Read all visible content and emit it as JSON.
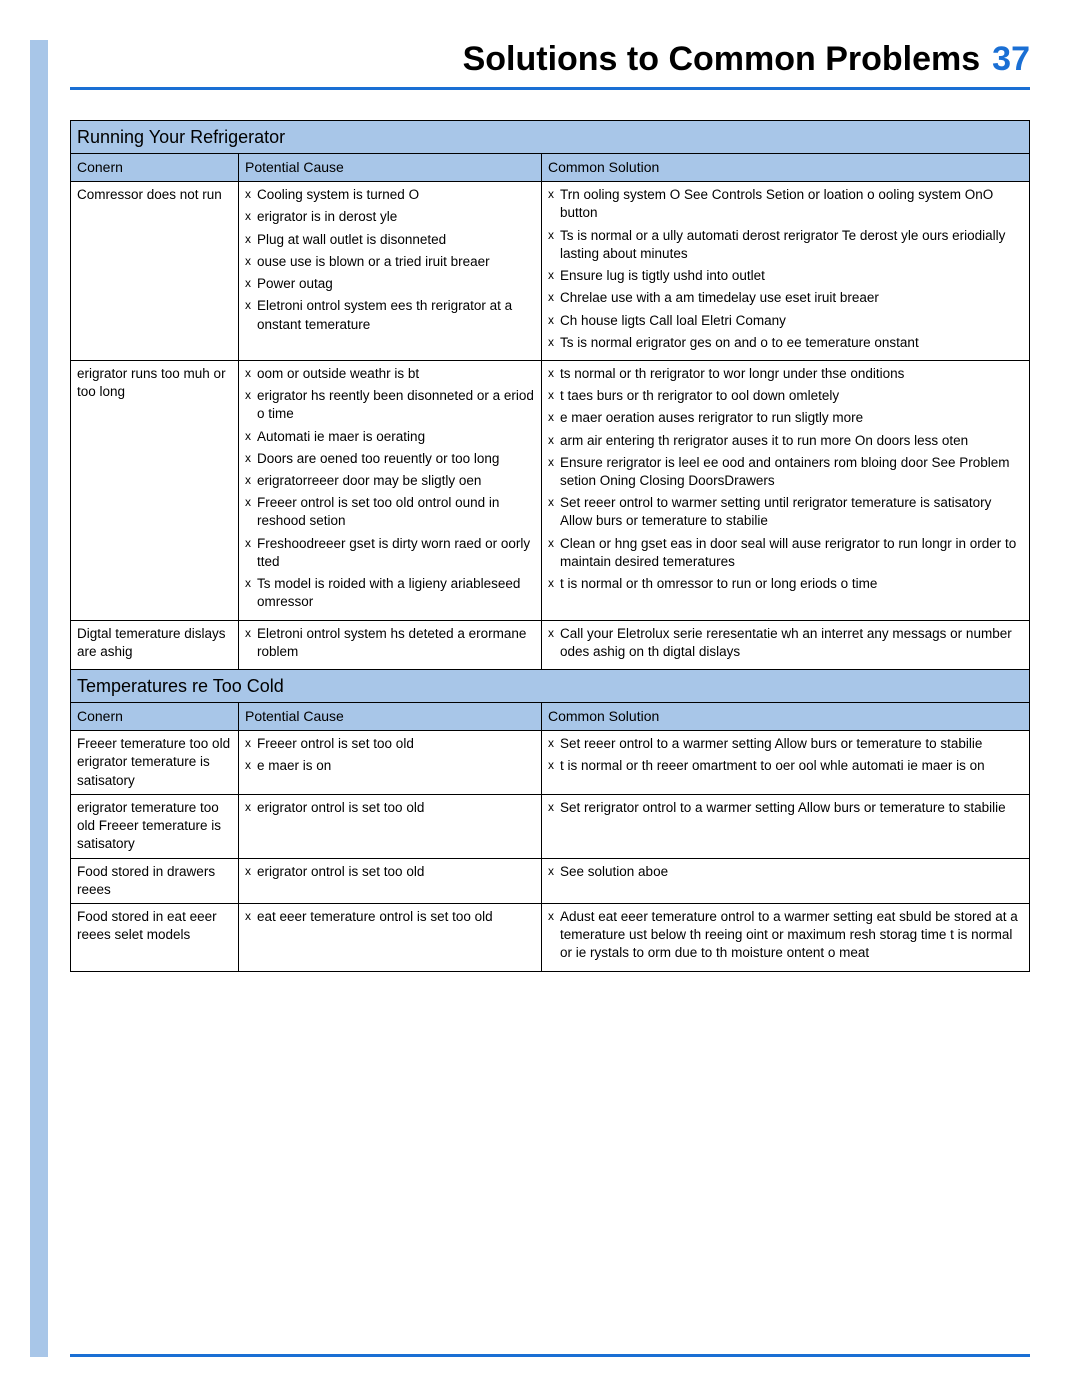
{
  "header": {
    "title": "Solutions to Common Problems",
    "page_number": "37"
  },
  "colors": {
    "accent": "#1a6fd4",
    "band": "#a8c6e8",
    "text": "#000000",
    "bg": "#ffffff"
  },
  "tables": [
    {
      "section_title": "Running Your Refrigerator",
      "columns": [
        "Conern",
        "Potential Cause",
        "Common Solution"
      ],
      "rows": [
        {
          "concern": "Comressor does not run",
          "causes": [
            "Cooling system is turned O",
            "erigrator is in derost yle",
            "Plug at wall outlet is disonneted",
            "ouse use is blown or a tried iruit breaer",
            "Power outag",
            "Eletroni ontrol system ees th rerigrator at a onstant temerature"
          ],
          "solutions": [
            "Trn ooling system O See Controls Setion or loation o ooling system  OnO  button",
            "Ts is normal or a ully automati derost rerigrator Te derost yle ours eriodially lasting about  minutes",
            "Ensure lug is tigtly ushd into outlet",
            "Chrelae use with a  am timedelay use  eset iruit breaer",
            "Ch house ligts Call loal Eletri Comany",
            "Ts is normal erigrator ges on and o to ee temerature onstant"
          ]
        },
        {
          "concern": "erigrator runs too muh or too long",
          "causes": [
            "oom or outside weathr is bt",
            "erigrator hs reently been disonneted or a eriod o time",
            "Automati ie maer is oerating",
            "Doors are oened too reuently or too long",
            "erigratorreeer door may be sligtly oen",
            "Freeer ontrol is set too old ontrol ound in reshood setion",
            "Freshoodreeer gset is dirty worn raed or oorly tted",
            "Ts model is roided with a ligieny ariableseed omressor"
          ],
          "solutions": [
            "ts normal or th rerigrator to wor longr under thse onditions",
            "t taes  burs or th rerigrator to ool down omletely",
            "e maer oeration auses rerigrator to run sligtly more",
            "arm air entering th rerigrator auses it to run more  On doors less oten",
            "Ensure rerigrator is leel ee ood and ontainers rom bloing door See Problem setion Oning  Closing DoorsDrawers",
            "Set reeer ontrol to warmer setting until rerigrator temerature is satisatory Allow  burs or temerature to stabilie",
            "Clean or hng gset eas in door seal will ause rerigrator to run longr in order to maintain desired temeratures",
            "t is normal or th omressor to run or long eriods o time"
          ]
        },
        {
          "concern": "Digtal temerature dislays are ashig",
          "causes": [
            "Eletroni ontrol system hs deteted a erormane roblem"
          ],
          "solutions": [
            "Call your Eletrolux serie reresentatie wh an interret any messags or number odes ashig on th digtal dislays"
          ]
        }
      ]
    },
    {
      "section_title": "Temperatures re Too Cold",
      "columns": [
        "Conern",
        "Potential Cause",
        "Common Solution"
      ],
      "rows": [
        {
          "concern": "Freeer temerature too old erigrator temerature is satisatory",
          "causes": [
            "Freeer ontrol is set too old",
            "e maer is on"
          ],
          "solutions": [
            "Set reeer ontrol to a warmer setting Allow  burs or temerature to stabilie",
            "t is normal or th reeer omartment to oer ool whle automati ie maer is on"
          ]
        },
        {
          "concern": "erigrator temerature too old Freeer temerature is satisatory",
          "causes": [
            "erigrator ontrol is set too old"
          ],
          "solutions": [
            "Set rerigrator ontrol to a warmer setting Allow  burs or temerature to stabilie"
          ]
        },
        {
          "concern": "Food stored in drawers reees",
          "causes": [
            "erigrator ontrol is set too old"
          ],
          "solutions": [
            "See solution aboe"
          ]
        },
        {
          "concern": "Food stored in eat eeer reees selet models",
          "causes": [
            "eat eeer temerature ontrol is set too old"
          ],
          "solutions": [
            "Adust eat eeer temerature ontrol to a warmer setting eat sbuld be stored at a temerature ust below th reeing oint or maximum resh storag time t is normal or ie rystals to orm due to th moisture ontent o meat"
          ]
        }
      ]
    }
  ]
}
